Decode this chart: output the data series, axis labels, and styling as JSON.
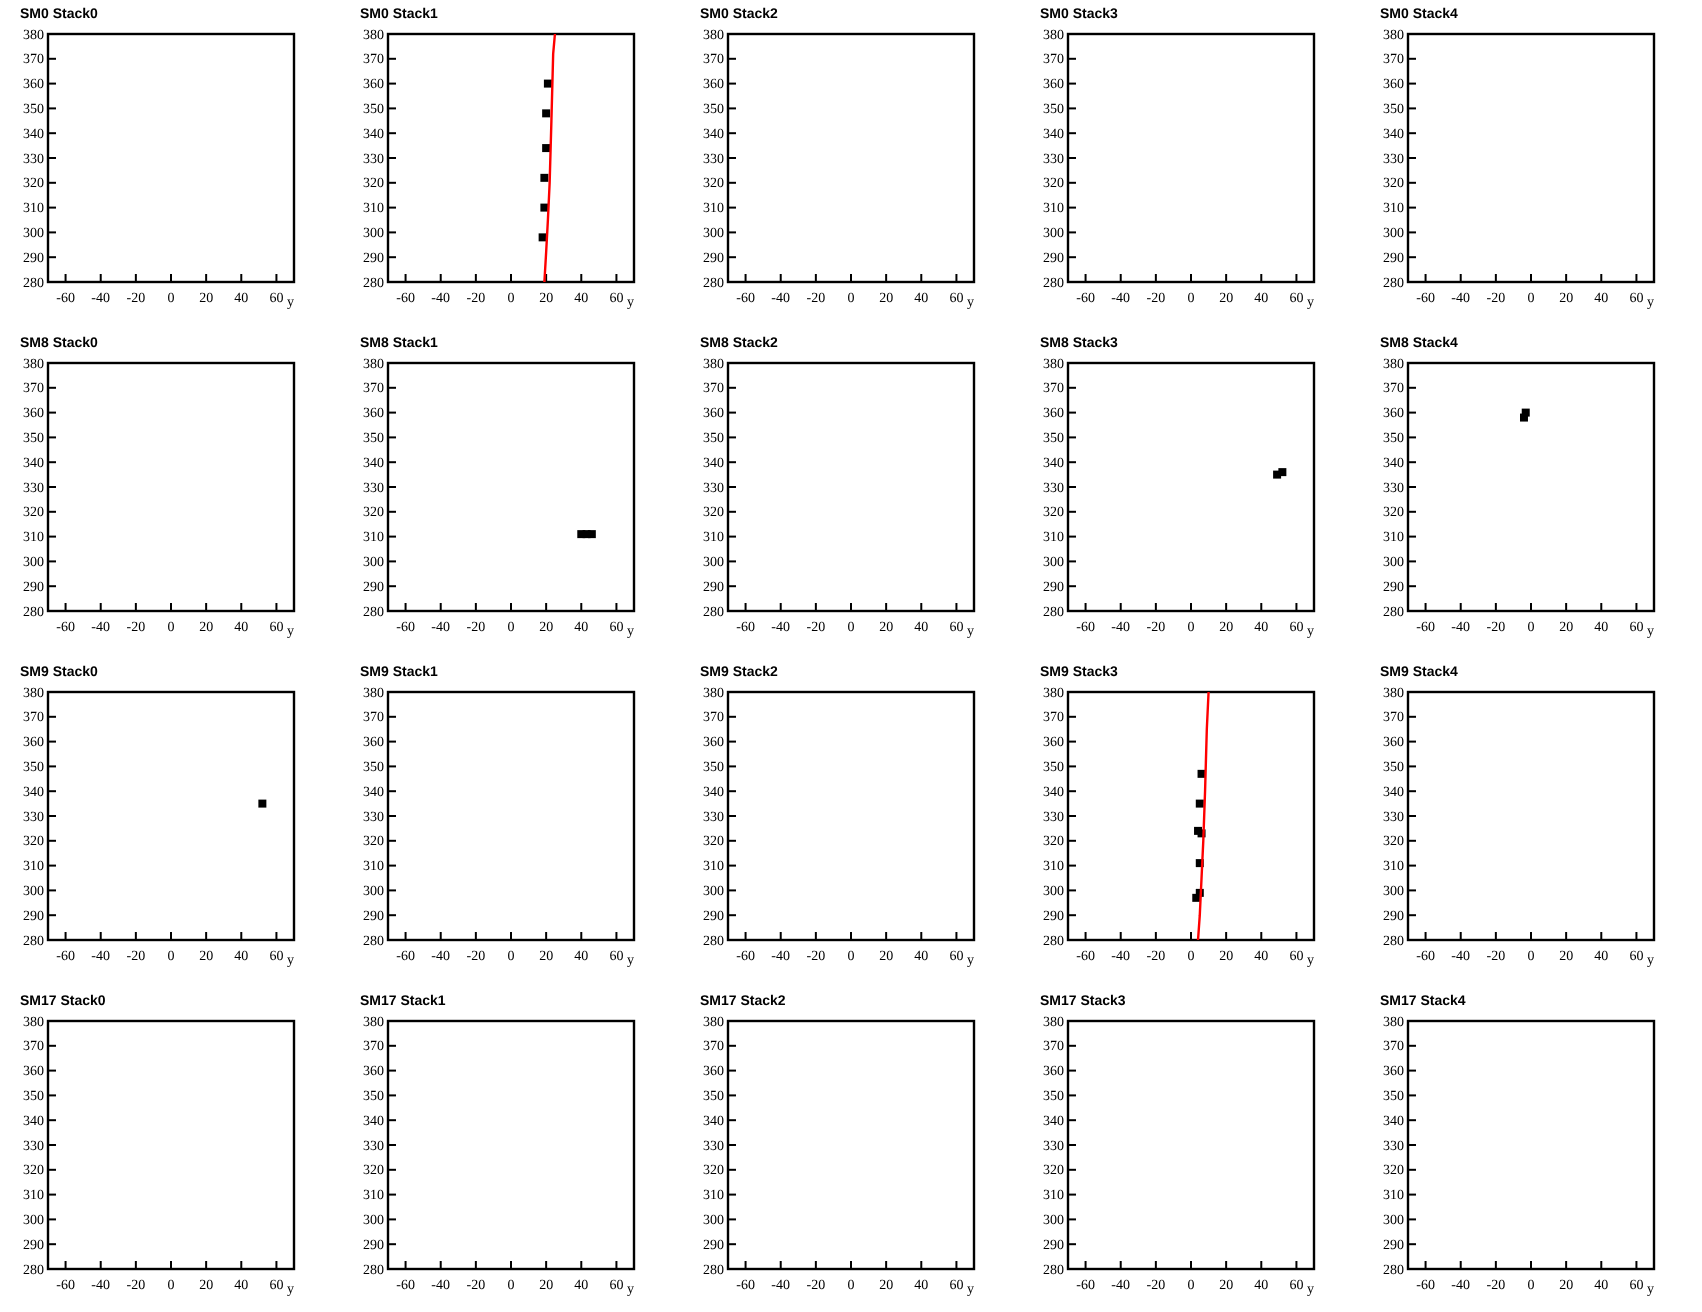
{
  "chart_data": [
    {
      "type": "scatter",
      "title": "SM0 Stack0",
      "xlabel": "y",
      "xlim": [
        -70,
        70
      ],
      "ylim": [
        280,
        380
      ],
      "xticks": [
        -60,
        -40,
        -20,
        0,
        20,
        40,
        60
      ],
      "yticks": [
        280,
        290,
        300,
        310,
        320,
        330,
        340,
        350,
        360,
        370,
        380
      ]
    },
    {
      "type": "scatter",
      "title": "SM0 Stack1",
      "xlabel": "y",
      "xlim": [
        -70,
        70
      ],
      "ylim": [
        280,
        380
      ],
      "xticks": [
        -60,
        -40,
        -20,
        0,
        20,
        40,
        60
      ],
      "yticks": [
        280,
        290,
        300,
        310,
        320,
        330,
        340,
        350,
        360,
        370,
        380
      ],
      "series": [
        {
          "type": "scatter",
          "marker": "square",
          "color": "#000000",
          "x": [
            21,
            20,
            20,
            19,
            19,
            18
          ],
          "values": [
            360,
            348,
            334,
            322,
            310,
            298
          ]
        },
        {
          "type": "line",
          "color": "#ff0000",
          "x": [
            19,
            20,
            21,
            22,
            23,
            24,
            25
          ],
          "values": [
            280,
            292,
            305,
            320,
            345,
            372,
            380
          ]
        }
      ]
    },
    {
      "type": "scatter",
      "title": "SM0 Stack2",
      "xlabel": "y",
      "xlim": [
        -70,
        70
      ],
      "ylim": [
        280,
        380
      ],
      "xticks": [
        -60,
        -40,
        -20,
        0,
        20,
        40,
        60
      ],
      "yticks": [
        280,
        290,
        300,
        310,
        320,
        330,
        340,
        350,
        360,
        370,
        380
      ]
    },
    {
      "type": "scatter",
      "title": "SM0 Stack3",
      "xlabel": "y",
      "xlim": [
        -70,
        70
      ],
      "ylim": [
        280,
        380
      ],
      "xticks": [
        -60,
        -40,
        -20,
        0,
        20,
        40,
        60
      ],
      "yticks": [
        280,
        290,
        300,
        310,
        320,
        330,
        340,
        350,
        360,
        370,
        380
      ]
    },
    {
      "type": "scatter",
      "title": "SM0 Stack4",
      "xlabel": "y",
      "xlim": [
        -70,
        70
      ],
      "ylim": [
        280,
        380
      ],
      "xticks": [
        -60,
        -40,
        -20,
        0,
        20,
        40,
        60
      ],
      "yticks": [
        280,
        290,
        300,
        310,
        320,
        330,
        340,
        350,
        360,
        370,
        380
      ]
    },
    {
      "type": "scatter",
      "title": "SM8 Stack0",
      "xlabel": "y",
      "xlim": [
        -70,
        70
      ],
      "ylim": [
        280,
        380
      ],
      "xticks": [
        -60,
        -40,
        -20,
        0,
        20,
        40,
        60
      ],
      "yticks": [
        280,
        290,
        300,
        310,
        320,
        330,
        340,
        350,
        360,
        370,
        380
      ]
    },
    {
      "type": "scatter",
      "title": "SM8 Stack1",
      "xlabel": "y",
      "xlim": [
        -70,
        70
      ],
      "ylim": [
        280,
        380
      ],
      "xticks": [
        -60,
        -40,
        -20,
        0,
        20,
        40,
        60
      ],
      "yticks": [
        280,
        290,
        300,
        310,
        320,
        330,
        340,
        350,
        360,
        370,
        380
      ],
      "series": [
        {
          "type": "scatter",
          "marker": "square",
          "color": "#000000",
          "x": [
            40,
            43,
            46
          ],
          "values": [
            311,
            311,
            311
          ]
        }
      ]
    },
    {
      "type": "scatter",
      "title": "SM8 Stack2",
      "xlabel": "y",
      "xlim": [
        -70,
        70
      ],
      "ylim": [
        280,
        380
      ],
      "xticks": [
        -60,
        -40,
        -20,
        0,
        20,
        40,
        60
      ],
      "yticks": [
        280,
        290,
        300,
        310,
        320,
        330,
        340,
        350,
        360,
        370,
        380
      ]
    },
    {
      "type": "scatter",
      "title": "SM8 Stack3",
      "xlabel": "y",
      "xlim": [
        -70,
        70
      ],
      "ylim": [
        280,
        380
      ],
      "xticks": [
        -60,
        -40,
        -20,
        0,
        20,
        40,
        60
      ],
      "yticks": [
        280,
        290,
        300,
        310,
        320,
        330,
        340,
        350,
        360,
        370,
        380
      ],
      "series": [
        {
          "type": "scatter",
          "marker": "square",
          "color": "#000000",
          "x": [
            49,
            52
          ],
          "values": [
            335,
            336
          ]
        }
      ]
    },
    {
      "type": "scatter",
      "title": "SM8 Stack4",
      "xlabel": "y",
      "xlim": [
        -70,
        70
      ],
      "ylim": [
        280,
        380
      ],
      "xticks": [
        -60,
        -40,
        -20,
        0,
        20,
        40,
        60
      ],
      "yticks": [
        280,
        290,
        300,
        310,
        320,
        330,
        340,
        350,
        360,
        370,
        380
      ],
      "series": [
        {
          "type": "scatter",
          "marker": "square",
          "color": "#000000",
          "x": [
            -4,
            -3
          ],
          "values": [
            358,
            360
          ]
        }
      ]
    },
    {
      "type": "scatter",
      "title": "SM9 Stack0",
      "xlabel": "y",
      "xlim": [
        -70,
        70
      ],
      "ylim": [
        280,
        380
      ],
      "xticks": [
        -60,
        -40,
        -20,
        0,
        20,
        40,
        60
      ],
      "yticks": [
        280,
        290,
        300,
        310,
        320,
        330,
        340,
        350,
        360,
        370,
        380
      ],
      "series": [
        {
          "type": "scatter",
          "marker": "square",
          "color": "#000000",
          "x": [
            52
          ],
          "values": [
            335
          ]
        }
      ]
    },
    {
      "type": "scatter",
      "title": "SM9 Stack1",
      "xlabel": "y",
      "xlim": [
        -70,
        70
      ],
      "ylim": [
        280,
        380
      ],
      "xticks": [
        -60,
        -40,
        -20,
        0,
        20,
        40,
        60
      ],
      "yticks": [
        280,
        290,
        300,
        310,
        320,
        330,
        340,
        350,
        360,
        370,
        380
      ]
    },
    {
      "type": "scatter",
      "title": "SM9 Stack2",
      "xlabel": "y",
      "xlim": [
        -70,
        70
      ],
      "ylim": [
        280,
        380
      ],
      "xticks": [
        -60,
        -40,
        -20,
        0,
        20,
        40,
        60
      ],
      "yticks": [
        280,
        290,
        300,
        310,
        320,
        330,
        340,
        350,
        360,
        370,
        380
      ]
    },
    {
      "type": "scatter",
      "title": "SM9 Stack3",
      "xlabel": "y",
      "xlim": [
        -70,
        70
      ],
      "ylim": [
        280,
        380
      ],
      "xticks": [
        -60,
        -40,
        -20,
        0,
        20,
        40,
        60
      ],
      "yticks": [
        280,
        290,
        300,
        310,
        320,
        330,
        340,
        350,
        360,
        370,
        380
      ],
      "series": [
        {
          "type": "scatter",
          "marker": "square",
          "color": "#000000",
          "x": [
            6,
            5,
            4,
            6,
            5,
            5,
            3
          ],
          "values": [
            347,
            335,
            324,
            323,
            311,
            299,
            297
          ]
        },
        {
          "type": "line",
          "color": "#ff0000",
          "x": [
            4,
            5,
            6,
            7,
            8,
            9,
            10
          ],
          "values": [
            280,
            290,
            305,
            320,
            340,
            365,
            380
          ]
        }
      ]
    },
    {
      "type": "scatter",
      "title": "SM9 Stack4",
      "xlabel": "y",
      "xlim": [
        -70,
        70
      ],
      "ylim": [
        280,
        380
      ],
      "xticks": [
        -60,
        -40,
        -20,
        0,
        20,
        40,
        60
      ],
      "yticks": [
        280,
        290,
        300,
        310,
        320,
        330,
        340,
        350,
        360,
        370,
        380
      ]
    },
    {
      "type": "scatter",
      "title": "SM17 Stack0",
      "xlabel": "y",
      "xlim": [
        -70,
        70
      ],
      "ylim": [
        280,
        380
      ],
      "xticks": [
        -60,
        -40,
        -20,
        0,
        20,
        40,
        60
      ],
      "yticks": [
        280,
        290,
        300,
        310,
        320,
        330,
        340,
        350,
        360,
        370,
        380
      ]
    },
    {
      "type": "scatter",
      "title": "SM17 Stack1",
      "xlabel": "y",
      "xlim": [
        -70,
        70
      ],
      "ylim": [
        280,
        380
      ],
      "xticks": [
        -60,
        -40,
        -20,
        0,
        20,
        40,
        60
      ],
      "yticks": [
        280,
        290,
        300,
        310,
        320,
        330,
        340,
        350,
        360,
        370,
        380
      ]
    },
    {
      "type": "scatter",
      "title": "SM17 Stack2",
      "xlabel": "y",
      "xlim": [
        -70,
        70
      ],
      "ylim": [
        280,
        380
      ],
      "xticks": [
        -60,
        -40,
        -20,
        0,
        20,
        40,
        60
      ],
      "yticks": [
        280,
        290,
        300,
        310,
        320,
        330,
        340,
        350,
        360,
        370,
        380
      ]
    },
    {
      "type": "scatter",
      "title": "SM17 Stack3",
      "xlabel": "y",
      "xlim": [
        -70,
        70
      ],
      "ylim": [
        280,
        380
      ],
      "xticks": [
        -60,
        -40,
        -20,
        0,
        20,
        40,
        60
      ],
      "yticks": [
        280,
        290,
        300,
        310,
        320,
        330,
        340,
        350,
        360,
        370,
        380
      ]
    },
    {
      "type": "scatter",
      "title": "SM17 Stack4",
      "xlabel": "y",
      "xlim": [
        -70,
        70
      ],
      "ylim": [
        280,
        380
      ],
      "xticks": [
        -60,
        -40,
        -20,
        0,
        20,
        40,
        60
      ],
      "yticks": [
        280,
        290,
        300,
        310,
        320,
        330,
        340,
        350,
        360,
        370,
        380
      ]
    }
  ]
}
